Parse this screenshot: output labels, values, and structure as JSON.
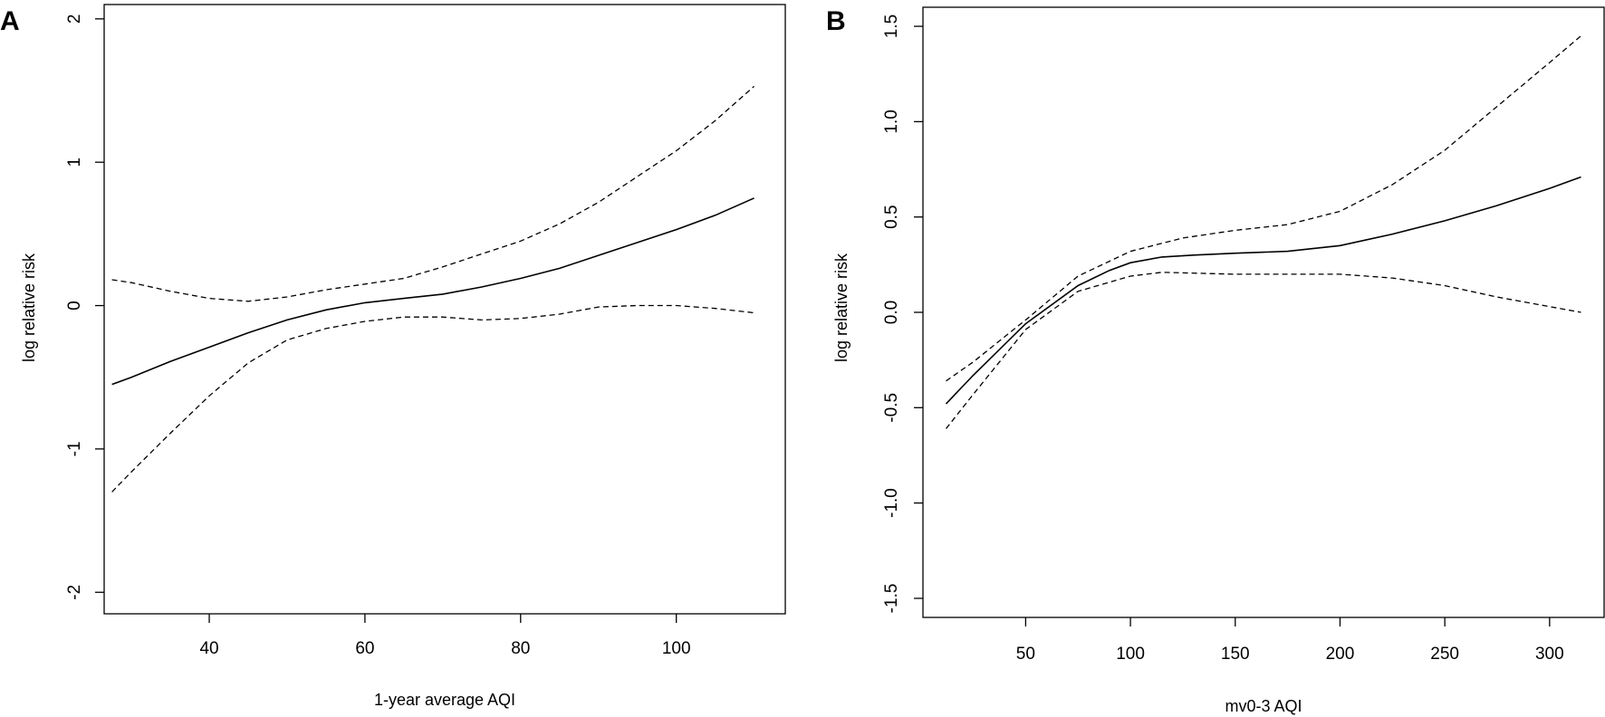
{
  "chart_data": [
    {
      "panel": "A",
      "type": "line",
      "xlabel": "1-year average AQI",
      "ylabel": "log relative risk",
      "xlim": [
        26.5,
        114
      ],
      "ylim": [
        -2.15,
        2.1
      ],
      "xticks": [
        40,
        60,
        80,
        100
      ],
      "yticks": [
        -2,
        -1,
        0,
        1,
        2
      ],
      "grid": false,
      "series": [
        {
          "style": "solid",
          "x": [
            27.5,
            30,
            35,
            40,
            45,
            50,
            55,
            60,
            65,
            70,
            75,
            80,
            85,
            90,
            95,
            100,
            105,
            110
          ],
          "y": [
            -0.55,
            -0.5,
            -0.39,
            -0.29,
            -0.19,
            -0.1,
            -0.03,
            0.02,
            0.05,
            0.08,
            0.13,
            0.19,
            0.26,
            0.35,
            0.44,
            0.53,
            0.63,
            0.75
          ]
        },
        {
          "style": "dashed",
          "x": [
            27.5,
            30,
            35,
            40,
            45,
            50,
            55,
            60,
            65,
            70,
            75,
            80,
            85,
            90,
            95,
            100,
            105,
            110
          ],
          "y": [
            0.18,
            0.16,
            0.1,
            0.05,
            0.03,
            0.06,
            0.11,
            0.15,
            0.19,
            0.27,
            0.36,
            0.45,
            0.57,
            0.72,
            0.9,
            1.08,
            1.29,
            1.53
          ]
        },
        {
          "style": "dashed",
          "x": [
            27.5,
            30,
            35,
            40,
            45,
            50,
            55,
            60,
            65,
            70,
            75,
            80,
            85,
            90,
            95,
            100,
            105,
            110
          ],
          "y": [
            -1.3,
            -1.16,
            -0.89,
            -0.63,
            -0.4,
            -0.24,
            -0.16,
            -0.11,
            -0.08,
            -0.08,
            -0.1,
            -0.09,
            -0.06,
            -0.01,
            0.0,
            0.0,
            -0.02,
            -0.05
          ]
        }
      ]
    },
    {
      "panel": "B",
      "type": "line",
      "xlabel": "mv0-3 AQI",
      "ylabel": "log relative risk",
      "xlim": [
        1,
        326
      ],
      "ylim": [
        -1.6,
        1.6
      ],
      "xticks": [
        50,
        100,
        150,
        200,
        250,
        300
      ],
      "ytick_labels": [
        "-1.5",
        "-1.0",
        "-0.5",
        "0.0",
        "0.5",
        "1.0",
        "1.5"
      ],
      "yticks": [
        -1.5,
        -1.0,
        -0.5,
        0.0,
        0.5,
        1.0,
        1.5
      ],
      "grid": false,
      "series": [
        {
          "style": "solid",
          "x": [
            12,
            25,
            50,
            75,
            90,
            100,
            115,
            130,
            150,
            175,
            200,
            225,
            250,
            275,
            300,
            315
          ],
          "y": [
            -0.48,
            -0.33,
            -0.06,
            0.14,
            0.22,
            0.26,
            0.29,
            0.3,
            0.31,
            0.32,
            0.35,
            0.41,
            0.48,
            0.56,
            0.65,
            0.71
          ]
        },
        {
          "style": "dashed",
          "x": [
            12,
            25,
            50,
            75,
            100,
            125,
            150,
            175,
            200,
            225,
            250,
            275,
            300,
            315
          ],
          "y": [
            -0.36,
            -0.26,
            -0.04,
            0.19,
            0.32,
            0.39,
            0.43,
            0.46,
            0.53,
            0.67,
            0.85,
            1.08,
            1.31,
            1.45
          ]
        },
        {
          "style": "dashed",
          "x": [
            12,
            25,
            50,
            75,
            100,
            115,
            150,
            175,
            200,
            225,
            250,
            275,
            300,
            315
          ],
          "y": [
            -0.61,
            -0.43,
            -0.09,
            0.11,
            0.19,
            0.21,
            0.2,
            0.2,
            0.2,
            0.18,
            0.14,
            0.08,
            0.03,
            0.0
          ]
        }
      ]
    }
  ]
}
